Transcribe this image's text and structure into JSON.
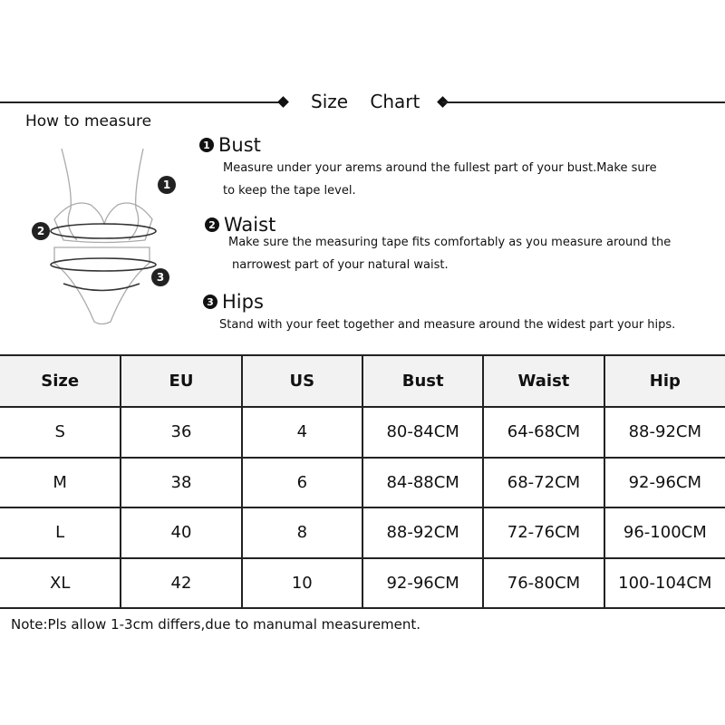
{
  "header": {
    "title": "Size Chart",
    "how_to_measure": "How to measure"
  },
  "sections": [
    {
      "num": "1",
      "title": "Bust",
      "lines": [
        "Measure under your arems around the fullest part of your bust.Make sure",
        "to keep the tape level."
      ]
    },
    {
      "num": "2",
      "title": "Waist",
      "lines": [
        "Make sure the measuring tape fits comfortably as you measure around the",
        "narrowest part of your natural waist."
      ]
    },
    {
      "num": "3",
      "title": "Hips",
      "lines": [
        "Stand with your feet together and measure around the widest part your hips."
      ]
    }
  ],
  "illustration_labels": [
    "1",
    "2",
    "3"
  ],
  "table": {
    "headers": [
      "Size",
      "EU",
      "US",
      "Bust",
      "Waist",
      "Hip"
    ],
    "rows": [
      [
        "S",
        "36",
        "4",
        "80-84CM",
        "64-68CM",
        "88-92CM"
      ],
      [
        "M",
        "38",
        "6",
        "84-88CM",
        "68-72CM",
        "92-96CM"
      ],
      [
        "L",
        "40",
        "8",
        "88-92CM",
        "72-76CM",
        "96-100CM"
      ],
      [
        "XL",
        "42",
        "10",
        "92-96CM",
        "76-80CM",
        "100-104CM"
      ]
    ]
  },
  "note": "Note:Pls allow 1-3cm differs,due to manumal measurement."
}
